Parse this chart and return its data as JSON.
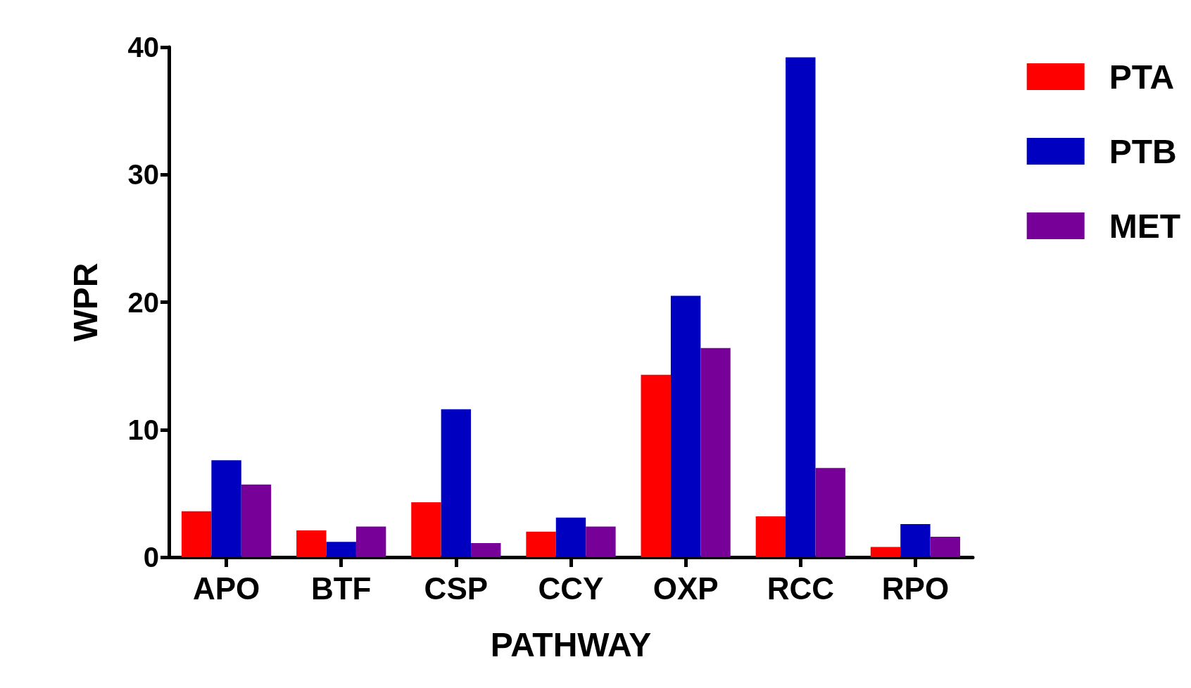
{
  "chart_data": {
    "type": "bar",
    "xlabel": "PATHWAY",
    "ylabel": "WPR",
    "categories": [
      "APO",
      "BTF",
      "CSP",
      "CCY",
      "OXP",
      "RCC",
      "RPO"
    ],
    "series": [
      {
        "name": "PTA",
        "color": "#ff0000",
        "values": [
          3.6,
          2.1,
          4.3,
          2.0,
          14.3,
          3.2,
          0.8
        ]
      },
      {
        "name": "PTB",
        "color": "#0000c0",
        "values": [
          7.6,
          1.2,
          11.6,
          3.1,
          20.5,
          39.2,
          2.6
        ]
      },
      {
        "name": "MET",
        "color": "#770099",
        "values": [
          5.7,
          2.4,
          1.1,
          2.4,
          16.4,
          7.0,
          1.6
        ]
      }
    ],
    "ylim": [
      0,
      40
    ],
    "yticks": [
      0,
      10,
      20,
      30,
      40
    ],
    "grid": false,
    "legend": "top right"
  }
}
